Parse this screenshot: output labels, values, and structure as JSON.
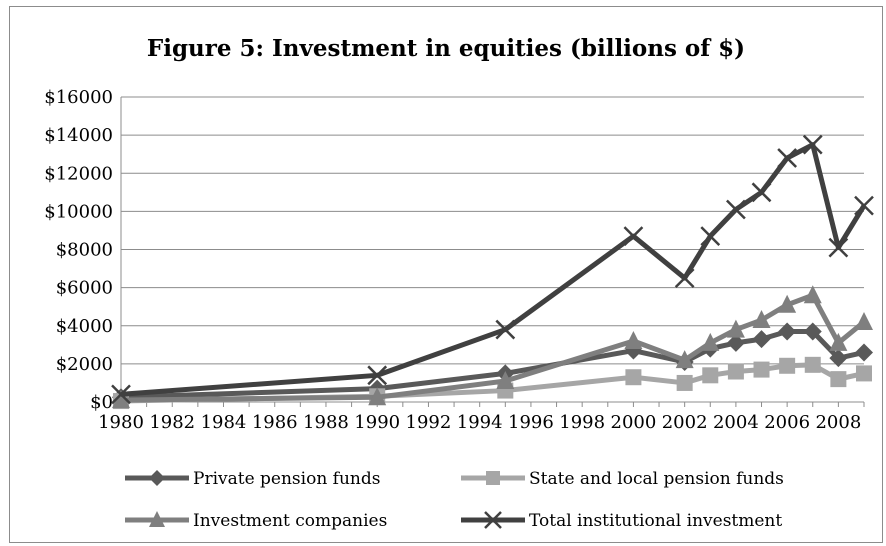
{
  "chart_data": {
    "type": "line",
    "title": "Figure 5: Investment in equities (billions of $)",
    "xlabel": "",
    "ylabel": "",
    "xlim": [
      1980,
      2009
    ],
    "ylim": [
      0,
      16000
    ],
    "y_ticks": [
      0,
      2000,
      4000,
      6000,
      8000,
      10000,
      12000,
      14000,
      16000
    ],
    "y_tick_labels": [
      "$0",
      "$2000",
      "$4000",
      "$6000",
      "$8000",
      "$10000",
      "$12000",
      "$14000",
      "$16000"
    ],
    "x_ticks": [
      1980,
      1982,
      1984,
      1986,
      1988,
      1990,
      1992,
      1994,
      1996,
      1998,
      2000,
      2002,
      2004,
      2006,
      2008
    ],
    "x_tick_labels": [
      "1980",
      "1982",
      "1984",
      "1986",
      "1988",
      "1990",
      "1992",
      "1994",
      "1996",
      "1998",
      "2000",
      "2002",
      "2004",
      "2006",
      "2008"
    ],
    "grid": "horizontal",
    "legend_position": "bottom",
    "x": [
      1980,
      1990,
      1995,
      2000,
      2002,
      2003,
      2004,
      2005,
      2006,
      2007,
      2008,
      2009
    ],
    "series": [
      {
        "name": "Private pension funds",
        "marker": "diamond",
        "color": "#595959",
        "values": [
          250,
          700,
          1500,
          2700,
          2100,
          2800,
          3100,
          3300,
          3700,
          3700,
          2300,
          2600
        ]
      },
      {
        "name": "State and local pension funds",
        "marker": "square",
        "color": "#a6a6a6",
        "values": [
          50,
          300,
          600,
          1300,
          1000,
          1400,
          1600,
          1700,
          1900,
          1950,
          1200,
          1500
        ]
      },
      {
        "name": "Investment companies",
        "marker": "triangle",
        "color": "#7f7f7f",
        "values": [
          100,
          250,
          1100,
          3200,
          2200,
          3100,
          3800,
          4300,
          5100,
          5600,
          3100,
          4200
        ]
      },
      {
        "name": "Total institutional investment",
        "marker": "x",
        "color": "#404040",
        "values": [
          400,
          1400,
          3800,
          8700,
          6500,
          8700,
          10100,
          11000,
          12800,
          13500,
          8100,
          10300
        ]
      }
    ]
  }
}
